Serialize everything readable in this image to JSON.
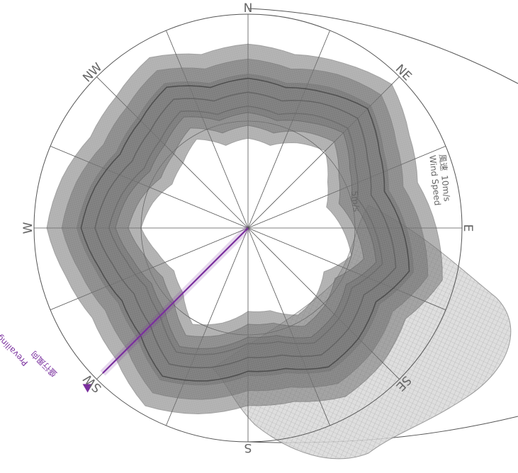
{
  "chart_data": {
    "type": "polar-surface",
    "title": "",
    "directions": [
      "N",
      "NE",
      "E",
      "SE",
      "S",
      "SW",
      "W",
      "NW"
    ],
    "direction_angles_deg": [
      0,
      45,
      90,
      135,
      180,
      225,
      270,
      315
    ],
    "radial_axis": {
      "max": 10,
      "unit": "m/s",
      "ticks": [
        5,
        10
      ],
      "inner_label": "5m/s",
      "outer_label_cn": "風速",
      "outer_label_value": "10m/s",
      "outer_label_en": "Wind Speed"
    },
    "prevailing_wind": {
      "direction": "SW",
      "angle_deg": 225,
      "label_cn": "盛行風向",
      "label_en": "Prevailing Wind Direction"
    },
    "series": [
      {
        "inner_speed": [
          5.2,
          5.0,
          5.6,
          6.1,
          5.3,
          4.8,
          5.4,
          6.0,
          5.1,
          5.5,
          5.7,
          5.0,
          4.9,
          5.6,
          6.2,
          5.3,
          5.0,
          5.4,
          6.0,
          5.6,
          5.1,
          5.3,
          5.8,
          5.0
        ]
      },
      {
        "inner_speed": [
          5.5,
          5.3,
          5.9,
          6.4,
          5.6,
          5.1,
          5.7,
          6.3,
          5.4,
          5.8,
          6.0,
          5.3,
          5.2,
          5.9,
          6.5,
          5.6,
          5.3,
          5.7,
          6.3,
          5.9,
          5.4,
          5.6,
          6.1,
          5.3
        ]
      },
      {
        "inner_speed": [
          5.8,
          5.6,
          6.1,
          6.7,
          5.9,
          5.4,
          6.0,
          6.6,
          5.7,
          6.1,
          6.3,
          5.6,
          5.5,
          6.2,
          6.8,
          5.9,
          5.6,
          6.0,
          6.6,
          6.2,
          5.7,
          5.9,
          6.4,
          5.6
        ]
      }
    ],
    "colors": {
      "grid": "#555555",
      "ring": "#555555",
      "surface": "#5f5f5f",
      "prevailing": "#7a2f9e"
    }
  }
}
